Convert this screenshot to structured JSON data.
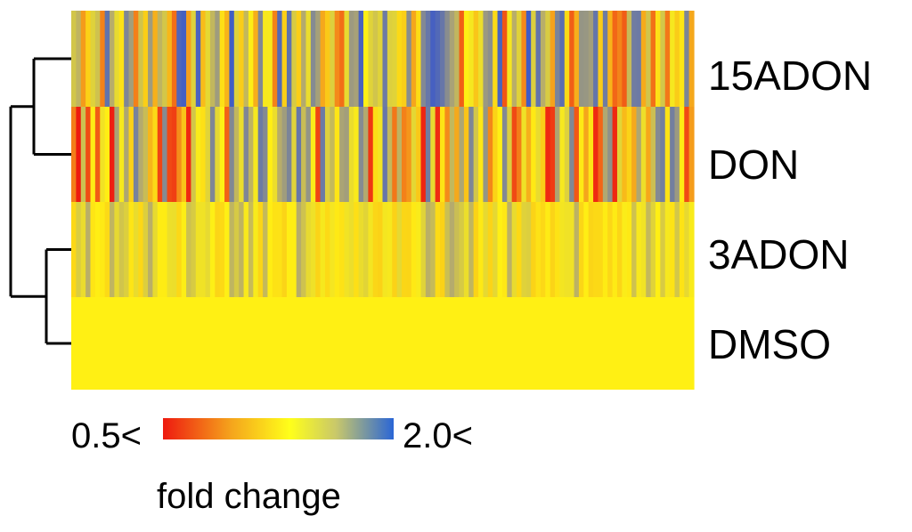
{
  "chart_data": {
    "type": "heatmap",
    "rows": [
      "15ADON",
      "DON",
      "3ADON",
      "DMSO"
    ],
    "n_columns": 130,
    "row_profiles": [
      {
        "name": "15ADON",
        "min_fold": 0.6,
        "max_fold": 2.0,
        "dominant": "orange-yellow with grey-blue streaks"
      },
      {
        "name": "DON",
        "min_fold": 0.5,
        "max_fold": 1.8,
        "dominant": "orange with grey streaks"
      },
      {
        "name": "3ADON",
        "min_fold": 0.9,
        "max_fold": 1.4,
        "dominant": "yellow with faint grey streaks"
      },
      {
        "name": "DMSO",
        "min_fold": 1.0,
        "max_fold": 1.0,
        "dominant": "uniform yellow"
      }
    ],
    "colorbar": {
      "min_label": "0.5<",
      "max_label": "2.0<",
      "title": "fold change",
      "colors": [
        "#ee1a10",
        "#f5a61c",
        "#ffff1a",
        "#c9c86a",
        "#2a66d6"
      ]
    },
    "dendrogram": {
      "clusters": [
        [
          "15ADON",
          "DON"
        ],
        [
          "3ADON",
          "DMSO"
        ]
      ],
      "side": "left"
    }
  }
}
